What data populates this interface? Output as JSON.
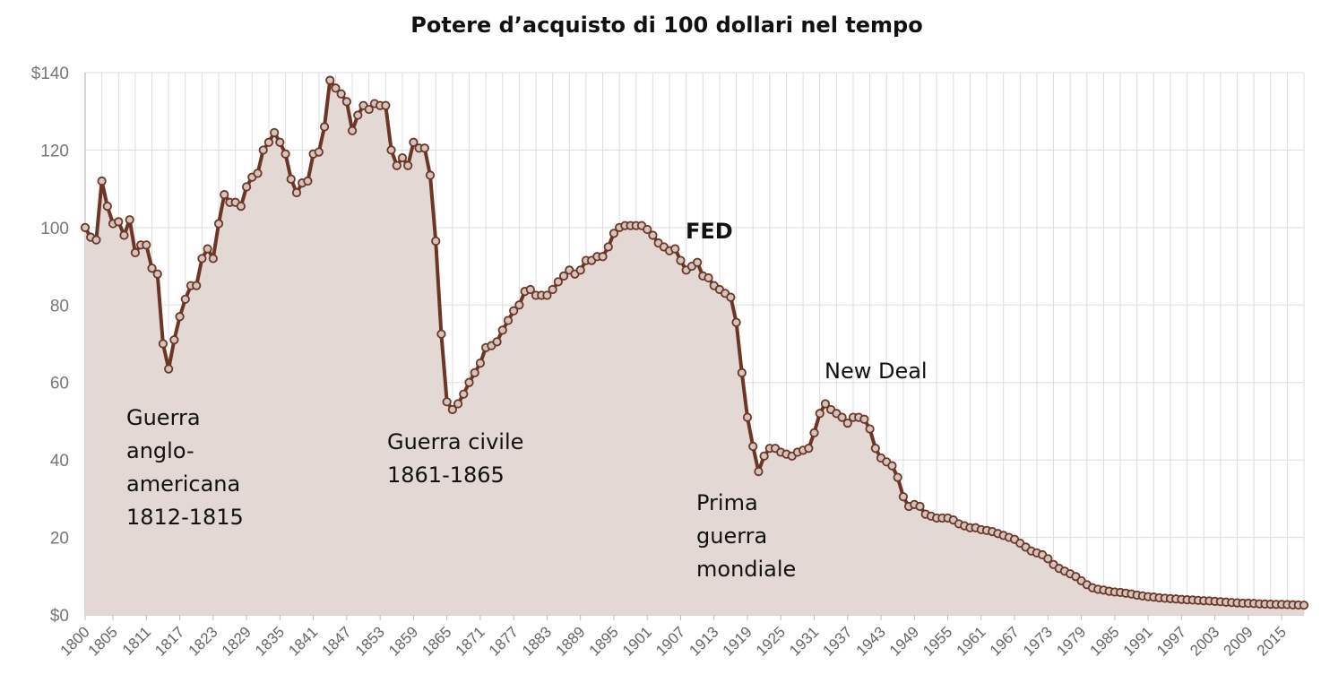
{
  "chart_data": {
    "type": "area",
    "title": "Potere d’acquisto di 100 dollari nel tempo",
    "xlabel": "",
    "ylabel": "",
    "ylim": [
      0,
      140
    ],
    "yticks": [
      "$0",
      "20",
      "40",
      "60",
      "80",
      "100",
      "120",
      "$140"
    ],
    "xlim": [
      1800,
      2019
    ],
    "xticks": [
      "1800",
      "1805",
      "1811",
      "1817",
      "1823",
      "1829",
      "1835",
      "1841",
      "1847",
      "1853",
      "1859",
      "1865",
      "1871",
      "1877",
      "1883",
      "1889",
      "1895",
      "1901",
      "1907",
      "1913",
      "1919",
      "1925",
      "1931",
      "1937",
      "1943",
      "1949",
      "1955",
      "1961",
      "1967",
      "1973",
      "1979",
      "1985",
      "1991",
      "1997",
      "2003",
      "2009",
      "2015"
    ],
    "grid": true,
    "legend": "none",
    "colors": {
      "line": "#6b3626",
      "fill": "#e3d8d4",
      "marker_fill": "#d4c4be",
      "grid": "#dddddd",
      "axis": "#bbbbbb"
    },
    "annotations": [
      {
        "id": "war1812",
        "lines": [
          "Guerra",
          "anglo-",
          "americana",
          "1812-1815"
        ],
        "bold": false
      },
      {
        "id": "civilwar",
        "lines": [
          "Guerra civile",
          "1861-1865"
        ],
        "bold": false
      },
      {
        "id": "fed",
        "lines": [
          "FED"
        ],
        "bold": true
      },
      {
        "id": "ww1",
        "lines": [
          "Prima",
          "guerra",
          "mondiale"
        ],
        "bold": false
      },
      {
        "id": "newdeal",
        "lines": [
          "New Deal"
        ],
        "bold": false
      }
    ],
    "series": [
      {
        "points": [
          [
            1800,
            100
          ],
          [
            1801,
            97.5
          ],
          [
            1802,
            96.8
          ],
          [
            1803,
            112
          ],
          [
            1804,
            105.5
          ],
          [
            1805,
            101
          ],
          [
            1806,
            101.5
          ],
          [
            1807,
            98
          ],
          [
            1808,
            102
          ],
          [
            1809,
            93.5
          ],
          [
            1810,
            95.5
          ],
          [
            1811,
            95.5
          ],
          [
            1812,
            89.5
          ],
          [
            1813,
            88
          ],
          [
            1814,
            70
          ],
          [
            1815,
            63.5
          ],
          [
            1816,
            71
          ],
          [
            1817,
            77
          ],
          [
            1818,
            81.5
          ],
          [
            1819,
            85
          ],
          [
            1820,
            85
          ],
          [
            1821,
            92
          ],
          [
            1822,
            94.5
          ],
          [
            1823,
            92
          ],
          [
            1824,
            101
          ],
          [
            1825,
            108.5
          ],
          [
            1826,
            106.5
          ],
          [
            1827,
            106.5
          ],
          [
            1828,
            105.5
          ],
          [
            1829,
            110.5
          ],
          [
            1830,
            113
          ],
          [
            1831,
            114
          ],
          [
            1832,
            120
          ],
          [
            1833,
            122
          ],
          [
            1834,
            124.5
          ],
          [
            1835,
            122
          ],
          [
            1836,
            119
          ],
          [
            1837,
            112.5
          ],
          [
            1838,
            109
          ],
          [
            1839,
            111.5
          ],
          [
            1840,
            112
          ],
          [
            1841,
            119
          ],
          [
            1842,
            119.5
          ],
          [
            1843,
            126
          ],
          [
            1844,
            138
          ],
          [
            1845,
            136
          ],
          [
            1846,
            134.5
          ],
          [
            1847,
            132.5
          ],
          [
            1848,
            125
          ],
          [
            1849,
            129
          ],
          [
            1850,
            131.5
          ],
          [
            1851,
            130.5
          ],
          [
            1852,
            132
          ],
          [
            1853,
            131.5
          ],
          [
            1854,
            131.5
          ],
          [
            1855,
            120
          ],
          [
            1856,
            116
          ],
          [
            1857,
            118
          ],
          [
            1858,
            116
          ],
          [
            1859,
            122
          ],
          [
            1860,
            120.5
          ],
          [
            1861,
            120.5
          ],
          [
            1862,
            113.5
          ],
          [
            1863,
            96.5
          ],
          [
            1864,
            72.5
          ],
          [
            1865,
            55
          ],
          [
            1866,
            53
          ],
          [
            1867,
            54.5
          ],
          [
            1868,
            57
          ],
          [
            1869,
            60
          ],
          [
            1870,
            62.5
          ],
          [
            1871,
            65
          ],
          [
            1872,
            69
          ],
          [
            1873,
            69.5
          ],
          [
            1874,
            70.5
          ],
          [
            1875,
            73.5
          ],
          [
            1876,
            76
          ],
          [
            1877,
            78.5
          ],
          [
            1878,
            80
          ],
          [
            1879,
            83.5
          ],
          [
            1880,
            84
          ],
          [
            1881,
            82.5
          ],
          [
            1882,
            82.5
          ],
          [
            1883,
            82.5
          ],
          [
            1884,
            84
          ],
          [
            1885,
            86
          ],
          [
            1886,
            87.5
          ],
          [
            1887,
            89
          ],
          [
            1888,
            88
          ],
          [
            1889,
            89
          ],
          [
            1890,
            91.5
          ],
          [
            1891,
            91.5
          ],
          [
            1892,
            92.5
          ],
          [
            1893,
            92.5
          ],
          [
            1894,
            95
          ],
          [
            1895,
            98.5
          ],
          [
            1896,
            100
          ],
          [
            1897,
            100.5
          ],
          [
            1898,
            100.5
          ],
          [
            1899,
            100.5
          ],
          [
            1900,
            100.5
          ],
          [
            1901,
            99.5
          ],
          [
            1902,
            98
          ],
          [
            1903,
            96
          ],
          [
            1904,
            95
          ],
          [
            1905,
            94
          ],
          [
            1906,
            94.5
          ],
          [
            1907,
            91.5
          ],
          [
            1908,
            89
          ],
          [
            1909,
            90
          ],
          [
            1910,
            91
          ],
          [
            1911,
            87.5
          ],
          [
            1912,
            87
          ],
          [
            1913,
            85
          ],
          [
            1914,
            84
          ],
          [
            1915,
            83
          ],
          [
            1916,
            82
          ],
          [
            1917,
            75.5
          ],
          [
            1918,
            62.5
          ],
          [
            1919,
            51
          ],
          [
            1920,
            43.5
          ],
          [
            1921,
            37
          ],
          [
            1922,
            41
          ],
          [
            1923,
            43
          ],
          [
            1924,
            43
          ],
          [
            1925,
            42
          ],
          [
            1926,
            41.5
          ],
          [
            1927,
            41
          ],
          [
            1928,
            42
          ],
          [
            1929,
            42.5
          ],
          [
            1930,
            43
          ],
          [
            1931,
            47
          ],
          [
            1932,
            52
          ],
          [
            1933,
            54.5
          ],
          [
            1934,
            53
          ],
          [
            1935,
            52
          ],
          [
            1936,
            51
          ],
          [
            1937,
            49.5
          ],
          [
            1938,
            51
          ],
          [
            1939,
            51
          ],
          [
            1940,
            50.5
          ],
          [
            1941,
            48
          ],
          [
            1942,
            43
          ],
          [
            1943,
            40.5
          ],
          [
            1944,
            39.5
          ],
          [
            1945,
            38.5
          ],
          [
            1946,
            35.5
          ],
          [
            1947,
            30.5
          ],
          [
            1948,
            28
          ],
          [
            1949,
            28.5
          ],
          [
            1950,
            28
          ],
          [
            1951,
            26
          ],
          [
            1952,
            25.5
          ],
          [
            1953,
            25
          ],
          [
            1954,
            25
          ],
          [
            1955,
            25
          ],
          [
            1956,
            24.5
          ],
          [
            1957,
            23.5
          ],
          [
            1958,
            23
          ],
          [
            1959,
            22.5
          ],
          [
            1960,
            22.5
          ],
          [
            1961,
            22
          ],
          [
            1962,
            21.8
          ],
          [
            1963,
            21.5
          ],
          [
            1964,
            21
          ],
          [
            1965,
            20.5
          ],
          [
            1966,
            20
          ],
          [
            1967,
            19.5
          ],
          [
            1968,
            18.5
          ],
          [
            1969,
            17.5
          ],
          [
            1970,
            16.5
          ],
          [
            1971,
            16
          ],
          [
            1972,
            15.5
          ],
          [
            1973,
            14.5
          ],
          [
            1974,
            13
          ],
          [
            1975,
            12
          ],
          [
            1976,
            11.3
          ],
          [
            1977,
            10.6
          ],
          [
            1978,
            9.9
          ],
          [
            1979,
            8.8
          ],
          [
            1980,
            7.8
          ],
          [
            1981,
            7
          ],
          [
            1982,
            6.6
          ],
          [
            1983,
            6.4
          ],
          [
            1984,
            6.1
          ],
          [
            1985,
            5.9
          ],
          [
            1986,
            5.8
          ],
          [
            1987,
            5.6
          ],
          [
            1988,
            5.4
          ],
          [
            1989,
            5.1
          ],
          [
            1990,
            4.9
          ],
          [
            1991,
            4.7
          ],
          [
            1992,
            4.6
          ],
          [
            1993,
            4.4
          ],
          [
            1994,
            4.3
          ],
          [
            1995,
            4.2
          ],
          [
            1996,
            4.1
          ],
          [
            1997,
            4
          ],
          [
            1998,
            3.9
          ],
          [
            1999,
            3.85
          ],
          [
            2000,
            3.75
          ],
          [
            2001,
            3.65
          ],
          [
            2002,
            3.6
          ],
          [
            2003,
            3.5
          ],
          [
            2004,
            3.4
          ],
          [
            2005,
            3.3
          ],
          [
            2006,
            3.2
          ],
          [
            2007,
            3.1
          ],
          [
            2008,
            3
          ],
          [
            2009,
            3
          ],
          [
            2010,
            2.95
          ],
          [
            2011,
            2.85
          ],
          [
            2012,
            2.8
          ],
          [
            2013,
            2.75
          ],
          [
            2014,
            2.7
          ],
          [
            2015,
            2.7
          ],
          [
            2016,
            2.65
          ],
          [
            2017,
            2.6
          ],
          [
            2018,
            2.55
          ],
          [
            2019,
            2.5
          ]
        ]
      }
    ]
  }
}
